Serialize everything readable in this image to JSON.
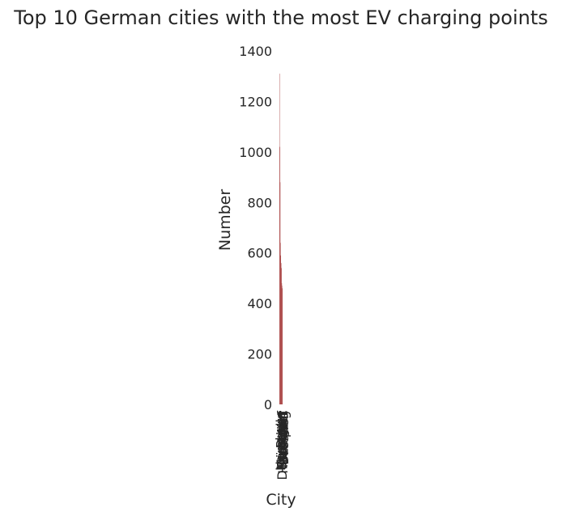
{
  "chart_data": {
    "type": "bar",
    "title": "Top 10 German cities with the most EV charging points",
    "xlabel": "City",
    "ylabel": "Number",
    "ylim": [
      0,
      1400
    ],
    "yticks": [
      0,
      200,
      400,
      600,
      800,
      1000,
      1200,
      1400
    ],
    "grid": false,
    "legend": "none",
    "bar_color": "#8b0000",
    "categories": [
      "Hamburg",
      "Berlin",
      "München",
      "Stuttgart",
      "Köln",
      "Düsseldorf",
      "Frankfurt",
      "Hannover",
      "Leipzig",
      "Dresden"
    ],
    "values": [
      1310,
      1020,
      880,
      640,
      590,
      560,
      540,
      480,
      470,
      460
    ]
  }
}
